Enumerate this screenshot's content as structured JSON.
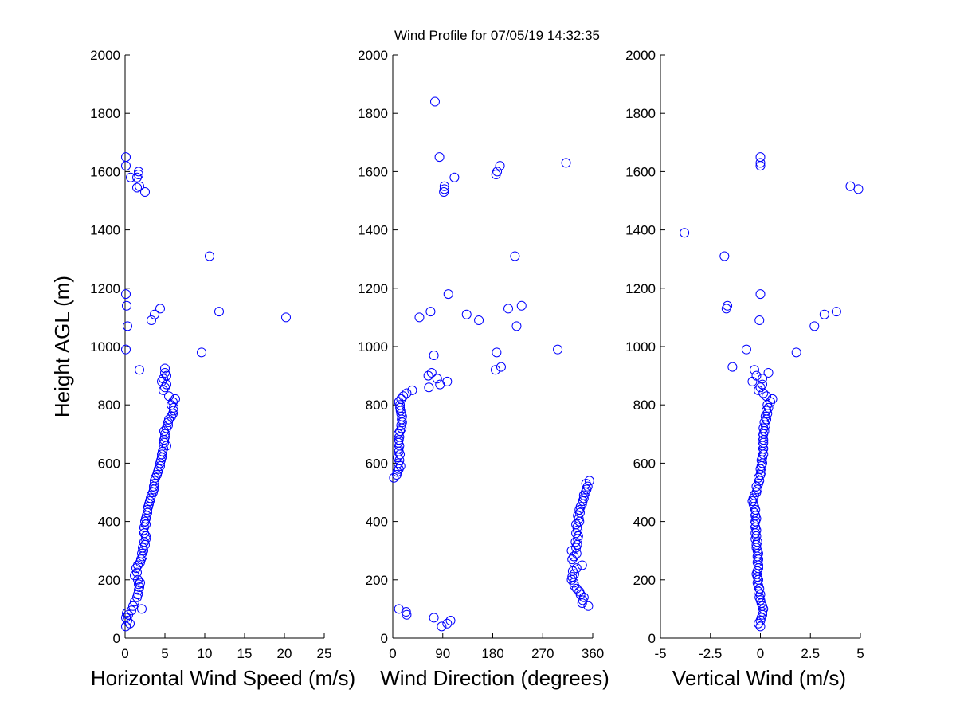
{
  "title": "Wind Profile for  07/05/19 14:32:35",
  "colors": {
    "marker": "#0000ff",
    "axis": "#000000",
    "background": "#ffffff"
  },
  "chart_data": [
    {
      "type": "scatter",
      "xlabel": "Horizontal Wind Speed (m/s)",
      "ylabel": "Height AGL (m)",
      "xlim": [
        0,
        25
      ],
      "ylim": [
        0,
        2000
      ],
      "xticks": [
        0,
        5,
        10,
        15,
        20,
        25
      ],
      "yticks": [
        0,
        200,
        400,
        600,
        800,
        1000,
        1200,
        1400,
        1600,
        1800,
        2000
      ],
      "grid": false,
      "points": [
        [
          0.1,
          40
        ],
        [
          0.6,
          50
        ],
        [
          0.3,
          60
        ],
        [
          0.1,
          70
        ],
        [
          0.4,
          80
        ],
        [
          0.2,
          85
        ],
        [
          0.8,
          95
        ],
        [
          1.0,
          110
        ],
        [
          1.2,
          125
        ],
        [
          1.5,
          140
        ],
        [
          1.6,
          150
        ],
        [
          1.7,
          165
        ],
        [
          1.8,
          175
        ],
        [
          1.7,
          185
        ],
        [
          1.9,
          190
        ],
        [
          1.6,
          200
        ],
        [
          1.2,
          215
        ],
        [
          1.5,
          225
        ],
        [
          1.4,
          240
        ],
        [
          1.6,
          250
        ],
        [
          1.9,
          260
        ],
        [
          2.0,
          270
        ],
        [
          2.2,
          280
        ],
        [
          2.1,
          290
        ],
        [
          2.3,
          300
        ],
        [
          2.2,
          310
        ],
        [
          2.5,
          320
        ],
        [
          2.4,
          330
        ],
        [
          2.6,
          340
        ],
        [
          2.6,
          350
        ],
        [
          2.4,
          360
        ],
        [
          2.3,
          370
        ],
        [
          2.4,
          380
        ],
        [
          2.6,
          390
        ],
        [
          2.5,
          400
        ],
        [
          2.6,
          410
        ],
        [
          2.7,
          420
        ],
        [
          2.8,
          430
        ],
        [
          2.8,
          440
        ],
        [
          2.9,
          450
        ],
        [
          3.0,
          460
        ],
        [
          3.1,
          470
        ],
        [
          3.2,
          480
        ],
        [
          3.3,
          490
        ],
        [
          3.5,
          500
        ],
        [
          3.6,
          510
        ],
        [
          3.6,
          520
        ],
        [
          3.7,
          530
        ],
        [
          3.7,
          540
        ],
        [
          3.8,
          550
        ],
        [
          4.0,
          560
        ],
        [
          4.1,
          570
        ],
        [
          4.2,
          580
        ],
        [
          4.4,
          590
        ],
        [
          4.4,
          600
        ],
        [
          4.5,
          610
        ],
        [
          4.6,
          620
        ],
        [
          4.6,
          630
        ],
        [
          4.7,
          640
        ],
        [
          4.8,
          650
        ],
        [
          5.2,
          660
        ],
        [
          4.9,
          670
        ],
        [
          4.9,
          680
        ],
        [
          5.0,
          690
        ],
        [
          5.0,
          700
        ],
        [
          4.9,
          710
        ],
        [
          5.2,
          720
        ],
        [
          5.4,
          730
        ],
        [
          5.4,
          740
        ],
        [
          5.5,
          750
        ],
        [
          5.8,
          760
        ],
        [
          6.0,
          770
        ],
        [
          6.1,
          780
        ],
        [
          6.1,
          790
        ],
        [
          5.8,
          800
        ],
        [
          6.0,
          810
        ],
        [
          6.3,
          820
        ],
        [
          5.5,
          830
        ],
        [
          4.8,
          850
        ],
        [
          5.0,
          860
        ],
        [
          5.2,
          870
        ],
        [
          4.6,
          880
        ],
        [
          4.8,
          890
        ],
        [
          5.2,
          900
        ],
        [
          5.0,
          910
        ],
        [
          5.0,
          925
        ],
        [
          1.8,
          920
        ],
        [
          9.6,
          980
        ],
        [
          0.1,
          990
        ],
        [
          0.3,
          1070
        ],
        [
          20.2,
          1100
        ],
        [
          3.3,
          1090
        ],
        [
          3.7,
          1110
        ],
        [
          4.4,
          1130
        ],
        [
          11.8,
          1120
        ],
        [
          0.2,
          1140
        ],
        [
          0.1,
          1180
        ],
        [
          10.6,
          1310
        ],
        [
          2.5,
          1530
        ],
        [
          1.5,
          1545
        ],
        [
          1.8,
          1550
        ],
        [
          1.5,
          1580
        ],
        [
          1.7,
          1590
        ],
        [
          1.7,
          1600
        ],
        [
          0.1,
          1620
        ],
        [
          0.1,
          1650
        ],
        [
          0.7,
          1580
        ],
        [
          2.1,
          100
        ]
      ]
    },
    {
      "type": "scatter",
      "xlabel": "Wind Direction (degrees)",
      "ylabel": "",
      "xlim": [
        0,
        360
      ],
      "ylim": [
        0,
        2000
      ],
      "xticks": [
        0,
        90,
        180,
        270,
        360
      ],
      "yticks": [
        0,
        200,
        400,
        600,
        800,
        1000,
        1200,
        1400,
        1600,
        1800,
        2000
      ],
      "grid": false,
      "points": [
        [
          88,
          40
        ],
        [
          98,
          50
        ],
        [
          104,
          60
        ],
        [
          74,
          70
        ],
        [
          25,
          80
        ],
        [
          24,
          90
        ],
        [
          11,
          100
        ],
        [
          352,
          110
        ],
        [
          341,
          120
        ],
        [
          342,
          130
        ],
        [
          344,
          140
        ],
        [
          338,
          150
        ],
        [
          336,
          160
        ],
        [
          331,
          170
        ],
        [
          327,
          180
        ],
        [
          326,
          190
        ],
        [
          322,
          200
        ],
        [
          323,
          210
        ],
        [
          327,
          220
        ],
        [
          324,
          230
        ],
        [
          331,
          240
        ],
        [
          341,
          250
        ],
        [
          326,
          260
        ],
        [
          323,
          270
        ],
        [
          326,
          280
        ],
        [
          331,
          290
        ],
        [
          322,
          300
        ],
        [
          330,
          310
        ],
        [
          332,
          320
        ],
        [
          329,
          330
        ],
        [
          333,
          340
        ],
        [
          334,
          350
        ],
        [
          330,
          360
        ],
        [
          333,
          370
        ],
        [
          332,
          380
        ],
        [
          330,
          390
        ],
        [
          336,
          400
        ],
        [
          335,
          410
        ],
        [
          333,
          420
        ],
        [
          337,
          430
        ],
        [
          336,
          440
        ],
        [
          338,
          450
        ],
        [
          341,
          460
        ],
        [
          342,
          470
        ],
        [
          344,
          480
        ],
        [
          344,
          490
        ],
        [
          347,
          500
        ],
        [
          349,
          510
        ],
        [
          351,
          520
        ],
        [
          348,
          530
        ],
        [
          354,
          540
        ],
        [
          2,
          550
        ],
        [
          7,
          560
        ],
        [
          8,
          570
        ],
        [
          11,
          580
        ],
        [
          14,
          590
        ],
        [
          10,
          600
        ],
        [
          12,
          610
        ],
        [
          9,
          620
        ],
        [
          13,
          630
        ],
        [
          11,
          640
        ],
        [
          10,
          650
        ],
        [
          12,
          660
        ],
        [
          10,
          670
        ],
        [
          11,
          680
        ],
        [
          12,
          690
        ],
        [
          10,
          700
        ],
        [
          13,
          710
        ],
        [
          16,
          720
        ],
        [
          15,
          730
        ],
        [
          17,
          740
        ],
        [
          16,
          750
        ],
        [
          17,
          760
        ],
        [
          15,
          770
        ],
        [
          14,
          780
        ],
        [
          13,
          790
        ],
        [
          13,
          800
        ],
        [
          11,
          810
        ],
        [
          15,
          820
        ],
        [
          19,
          830
        ],
        [
          25,
          840
        ],
        [
          35,
          850
        ],
        [
          65,
          860
        ],
        [
          85,
          870
        ],
        [
          98,
          880
        ],
        [
          80,
          890
        ],
        [
          64,
          900
        ],
        [
          70,
          910
        ],
        [
          185,
          920
        ],
        [
          195,
          930
        ],
        [
          74,
          970
        ],
        [
          187,
          980
        ],
        [
          297,
          990
        ],
        [
          223,
          1070
        ],
        [
          48,
          1100
        ],
        [
          155,
          1090
        ],
        [
          133,
          1110
        ],
        [
          68,
          1120
        ],
        [
          208,
          1130
        ],
        [
          232,
          1140
        ],
        [
          100,
          1180
        ],
        [
          220,
          1310
        ],
        [
          92,
          1530
        ],
        [
          93,
          1540
        ],
        [
          93,
          1550
        ],
        [
          111,
          1580
        ],
        [
          186,
          1590
        ],
        [
          188,
          1600
        ],
        [
          193,
          1620
        ],
        [
          312,
          1630
        ],
        [
          84,
          1650
        ],
        [
          76,
          1840
        ]
      ]
    },
    {
      "type": "scatter",
      "xlabel": "Vertical Wind (m/s)",
      "ylabel": "",
      "xlim": [
        -5,
        5
      ],
      "ylim": [
        0,
        2000
      ],
      "xticks": [
        "-5",
        "-2.5",
        "0",
        "2.5",
        "5"
      ],
      "xtick_values": [
        -5,
        -2.5,
        0,
        2.5,
        5
      ],
      "yticks": [
        0,
        200,
        400,
        600,
        800,
        1000,
        1200,
        1400,
        1600,
        1800,
        2000
      ],
      "grid": false,
      "points": [
        [
          0.0,
          40
        ],
        [
          -0.1,
          50
        ],
        [
          0.0,
          60
        ],
        [
          0.05,
          70
        ],
        [
          0.1,
          80
        ],
        [
          0.1,
          90
        ],
        [
          0.15,
          100
        ],
        [
          0.1,
          110
        ],
        [
          0.05,
          120
        ],
        [
          0.0,
          130
        ],
        [
          -0.05,
          140
        ],
        [
          0.0,
          150
        ],
        [
          -0.1,
          160
        ],
        [
          -0.05,
          170
        ],
        [
          -0.1,
          180
        ],
        [
          -0.15,
          190
        ],
        [
          -0.1,
          200
        ],
        [
          -0.15,
          210
        ],
        [
          -0.2,
          220
        ],
        [
          -0.15,
          230
        ],
        [
          -0.1,
          240
        ],
        [
          -0.1,
          250
        ],
        [
          -0.15,
          260
        ],
        [
          -0.1,
          270
        ],
        [
          -0.15,
          280
        ],
        [
          -0.1,
          290
        ],
        [
          -0.15,
          300
        ],
        [
          -0.2,
          310
        ],
        [
          -0.2,
          320
        ],
        [
          -0.15,
          330
        ],
        [
          -0.25,
          340
        ],
        [
          -0.2,
          350
        ],
        [
          -0.25,
          360
        ],
        [
          -0.2,
          370
        ],
        [
          -0.25,
          380
        ],
        [
          -0.3,
          390
        ],
        [
          -0.25,
          400
        ],
        [
          -0.2,
          410
        ],
        [
          -0.25,
          420
        ],
        [
          -0.3,
          430
        ],
        [
          -0.25,
          440
        ],
        [
          -0.3,
          450
        ],
        [
          -0.35,
          460
        ],
        [
          -0.4,
          470
        ],
        [
          -0.35,
          480
        ],
        [
          -0.3,
          490
        ],
        [
          -0.2,
          500
        ],
        [
          -0.15,
          510
        ],
        [
          -0.2,
          520
        ],
        [
          -0.1,
          530
        ],
        [
          -0.05,
          540
        ],
        [
          -0.1,
          550
        ],
        [
          0.0,
          560
        ],
        [
          0.05,
          570
        ],
        [
          0.0,
          580
        ],
        [
          0.05,
          590
        ],
        [
          0.1,
          600
        ],
        [
          0.05,
          610
        ],
        [
          0.1,
          620
        ],
        [
          0.15,
          630
        ],
        [
          0.1,
          640
        ],
        [
          0.15,
          650
        ],
        [
          0.1,
          660
        ],
        [
          0.15,
          670
        ],
        [
          0.15,
          680
        ],
        [
          0.1,
          690
        ],
        [
          0.15,
          700
        ],
        [
          0.2,
          710
        ],
        [
          0.15,
          720
        ],
        [
          0.25,
          730
        ],
        [
          0.2,
          740
        ],
        [
          0.3,
          750
        ],
        [
          0.25,
          760
        ],
        [
          0.35,
          770
        ],
        [
          0.3,
          780
        ],
        [
          0.4,
          790
        ],
        [
          0.35,
          800
        ],
        [
          0.5,
          810
        ],
        [
          0.6,
          820
        ],
        [
          0.3,
          830
        ],
        [
          0.15,
          840
        ],
        [
          -0.1,
          850
        ],
        [
          0.0,
          860
        ],
        [
          0.1,
          870
        ],
        [
          -0.4,
          880
        ],
        [
          0.1,
          890
        ],
        [
          -0.2,
          900
        ],
        [
          0.4,
          910
        ],
        [
          -0.3,
          920
        ],
        [
          -1.4,
          930
        ],
        [
          1.8,
          980
        ],
        [
          -0.7,
          990
        ],
        [
          2.7,
          1070
        ],
        [
          3.2,
          1110
        ],
        [
          3.8,
          1120
        ],
        [
          -0.05,
          1090
        ],
        [
          -1.7,
          1130
        ],
        [
          -1.65,
          1140
        ],
        [
          0.0,
          1180
        ],
        [
          -1.8,
          1310
        ],
        [
          -3.8,
          1390
        ],
        [
          4.5,
          1550
        ],
        [
          4.9,
          1540
        ],
        [
          0.0,
          1620
        ],
        [
          0.0,
          1630
        ],
        [
          0.0,
          1650
        ]
      ]
    }
  ]
}
